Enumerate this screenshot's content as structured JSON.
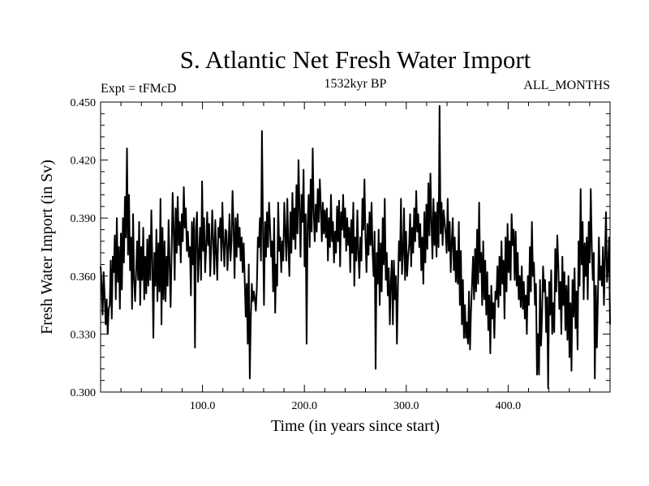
{
  "chart_data": {
    "type": "line",
    "title": "S. Atlantic Net Fresh Water Import",
    "subtitle_left": "Expt = tFMcD",
    "subtitle_center": "1532kyr BP",
    "subtitle_right": "ALL_MONTHS",
    "xlabel": "Time (in years since start)",
    "ylabel": "Fresh Water Import (in Sv)",
    "xlim": [
      0,
      500
    ],
    "ylim": [
      0.3,
      0.45
    ],
    "xticks": [
      100,
      200,
      300,
      400
    ],
    "xtick_labels": [
      "100.0",
      "200.0",
      "300.0",
      "400.0"
    ],
    "yticks": [
      0.3,
      0.33,
      0.36,
      0.39,
      0.42,
      0.45
    ],
    "ytick_labels": [
      "0.300",
      "0.330",
      "0.360",
      "0.390",
      "0.420",
      "0.450"
    ],
    "grid": false,
    "series": [
      {
        "name": "Fresh Water Import",
        "x_start": 0,
        "x_step": 1,
        "values": [
          0.365,
          0.356,
          0.34,
          0.362,
          0.35,
          0.335,
          0.348,
          0.33,
          0.343,
          0.345,
          0.368,
          0.338,
          0.37,
          0.362,
          0.381,
          0.348,
          0.39,
          0.357,
          0.375,
          0.343,
          0.382,
          0.353,
          0.39,
          0.367,
          0.401,
          0.38,
          0.426,
          0.371,
          0.402,
          0.363,
          0.38,
          0.343,
          0.392,
          0.358,
          0.347,
          0.362,
          0.378,
          0.358,
          0.388,
          0.345,
          0.375,
          0.358,
          0.385,
          0.348,
          0.37,
          0.351,
          0.379,
          0.355,
          0.381,
          0.358,
          0.394,
          0.368,
          0.328,
          0.372,
          0.355,
          0.384,
          0.347,
          0.377,
          0.352,
          0.4,
          0.335,
          0.385,
          0.348,
          0.378,
          0.347,
          0.37,
          0.355,
          0.389,
          0.366,
          0.344,
          0.373,
          0.403,
          0.384,
          0.358,
          0.395,
          0.372,
          0.401,
          0.376,
          0.388,
          0.367,
          0.392,
          0.378,
          0.406,
          0.385,
          0.395,
          0.373,
          0.383,
          0.37,
          0.375,
          0.35,
          0.388,
          0.366,
          0.39,
          0.323,
          0.384,
          0.393,
          0.357,
          0.371,
          0.385,
          0.358,
          0.409,
          0.373,
          0.39,
          0.362,
          0.374,
          0.393,
          0.376,
          0.387,
          0.36,
          0.375,
          0.394,
          0.378,
          0.361,
          0.389,
          0.372,
          0.358,
          0.385,
          0.38,
          0.39,
          0.368,
          0.398,
          0.377,
          0.365,
          0.384,
          0.383,
          0.363,
          0.375,
          0.392,
          0.368,
          0.378,
          0.404,
          0.386,
          0.359,
          0.39,
          0.37,
          0.392,
          0.375,
          0.385,
          0.368,
          0.38,
          0.362,
          0.377,
          0.358,
          0.339,
          0.356,
          0.325,
          0.366,
          0.307,
          0.338,
          0.356,
          0.347,
          0.352,
          0.348,
          0.342,
          0.355,
          0.38,
          0.375,
          0.39,
          0.368,
          0.435,
          0.385,
          0.345,
          0.388,
          0.37,
          0.393,
          0.375,
          0.398,
          0.385,
          0.37,
          0.378,
          0.352,
          0.39,
          0.341,
          0.366,
          0.355,
          0.398,
          0.373,
          0.38,
          0.362,
          0.378,
          0.368,
          0.398,
          0.383,
          0.368,
          0.4,
          0.376,
          0.36,
          0.393,
          0.372,
          0.403,
          0.379,
          0.395,
          0.374,
          0.407,
          0.382,
          0.42,
          0.395,
          0.37,
          0.402,
          0.388,
          0.415,
          0.365,
          0.392,
          0.325,
          0.387,
          0.402,
          0.375,
          0.41,
          0.383,
          0.426,
          0.393,
          0.378,
          0.397,
          0.383,
          0.405,
          0.388,
          0.41,
          0.396,
          0.378,
          0.398,
          0.382,
          0.394,
          0.38,
          0.395,
          0.368,
          0.39,
          0.375,
          0.402,
          0.378,
          0.388,
          0.367,
          0.383,
          0.372,
          0.396,
          0.378,
          0.399,
          0.365,
          0.393,
          0.384,
          0.402,
          0.38,
          0.395,
          0.373,
          0.39,
          0.376,
          0.385,
          0.362,
          0.389,
          0.372,
          0.398,
          0.355,
          0.38,
          0.368,
          0.394,
          0.372,
          0.359,
          0.38,
          0.368,
          0.4,
          0.384,
          0.41,
          0.38,
          0.362,
          0.387,
          0.371,
          0.393,
          0.376,
          0.398,
          0.372,
          0.36,
          0.383,
          0.312,
          0.372,
          0.356,
          0.384,
          0.345,
          0.377,
          0.352,
          0.39,
          0.366,
          0.4,
          0.358,
          0.372,
          0.35,
          0.364,
          0.335,
          0.357,
          0.368,
          0.335,
          0.368,
          0.348,
          0.36,
          0.325,
          0.355,
          0.378,
          0.368,
          0.4,
          0.361,
          0.372,
          0.395,
          0.358,
          0.383,
          0.36,
          0.37,
          0.376,
          0.392,
          0.365,
          0.385,
          0.372,
          0.395,
          0.378,
          0.404,
          0.383,
          0.392,
          0.375,
          0.387,
          0.363,
          0.38,
          0.356,
          0.393,
          0.367,
          0.397,
          0.374,
          0.408,
          0.381,
          0.413,
          0.388,
          0.369,
          0.4,
          0.376,
          0.393,
          0.37,
          0.398,
          0.375,
          0.448,
          0.382,
          0.398,
          0.376,
          0.394,
          0.388,
          0.382,
          0.372,
          0.4,
          0.373,
          0.388,
          0.362,
          0.377,
          0.39,
          0.363,
          0.38,
          0.357,
          0.373,
          0.356,
          0.388,
          0.345,
          0.373,
          0.335,
          0.358,
          0.328,
          0.345,
          0.328,
          0.336,
          0.325,
          0.352,
          0.322,
          0.342,
          0.356,
          0.37,
          0.348,
          0.374,
          0.352,
          0.384,
          0.356,
          0.398,
          0.362,
          0.372,
          0.345,
          0.378,
          0.348,
          0.368,
          0.34,
          0.362,
          0.332,
          0.35,
          0.32,
          0.355,
          0.338,
          0.346,
          0.328,
          0.352,
          0.348,
          0.365,
          0.344,
          0.37,
          0.35,
          0.378,
          0.356,
          0.368,
          0.338,
          0.38,
          0.352,
          0.387,
          0.362,
          0.378,
          0.358,
          0.392,
          0.376,
          0.384,
          0.358,
          0.383,
          0.355,
          0.372,
          0.348,
          0.36,
          0.344,
          0.365,
          0.343,
          0.357,
          0.338,
          0.35,
          0.33,
          0.36,
          0.345,
          0.375,
          0.352,
          0.388,
          0.36,
          0.367,
          0.345,
          0.356,
          0.309,
          0.33,
          0.309,
          0.358,
          0.324,
          0.34,
          0.365,
          0.352,
          0.358,
          0.331,
          0.349,
          0.302,
          0.357,
          0.34,
          0.363,
          0.33,
          0.346,
          0.331,
          0.374,
          0.352,
          0.381,
          0.366,
          0.343,
          0.357,
          0.33,
          0.37,
          0.345,
          0.362,
          0.332,
          0.355,
          0.327,
          0.36,
          0.318,
          0.346,
          0.311,
          0.358,
          0.339,
          0.364,
          0.333,
          0.352,
          0.322,
          0.378,
          0.355,
          0.405,
          0.366,
          0.388,
          0.348,
          0.377,
          0.36,
          0.38,
          0.348,
          0.388,
          0.367,
          0.405,
          0.375,
          0.358,
          0.372,
          0.307,
          0.355,
          0.323,
          0.348,
          0.38,
          0.358,
          0.365,
          0.355,
          0.375,
          0.345,
          0.37,
          0.393,
          0.357,
          0.364,
          0.38,
          0.335
        ]
      }
    ]
  }
}
